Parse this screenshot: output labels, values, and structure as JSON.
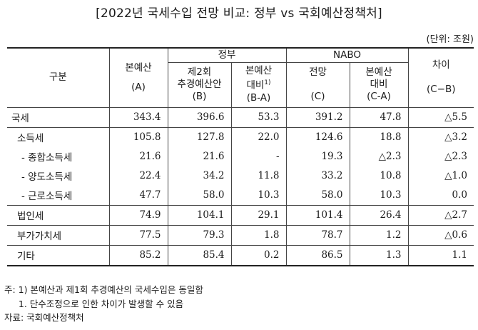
{
  "title": "[2022년 국세수입 전망 비교: 정부 vs 국회예산정책처]",
  "unit": "(단위: 조원)",
  "header": {
    "category": "구분",
    "budget_line1": "본예산",
    "budget_line2": "(A)",
    "gov_group": "정부",
    "gov_sup_line1": "제2회",
    "gov_sup_line2": "추경예산안",
    "gov_sup_line3": "(B)",
    "gov_diff_line1": "본예산",
    "gov_diff_line2": "대비",
    "gov_diff_note": "1)",
    "gov_diff_line3": "(B-A)",
    "nabo_group": "NABO",
    "nabo_fc_line1": "전망",
    "nabo_fc_line3": "(C)",
    "nabo_diff_line1": "본예산",
    "nabo_diff_line2": "대비",
    "nabo_diff_line3": "(C-A)",
    "gap_line1": "차이",
    "gap_line3": "(C−B)"
  },
  "rows": [
    {
      "label": "국세",
      "a": "343.4",
      "b": "396.6",
      "ba": "53.3",
      "c": "391.2",
      "ca": "47.8",
      "cb": "△5.5"
    },
    {
      "label": "소득세",
      "a": "105.8",
      "b": "127.8",
      "ba": "22.0",
      "c": "124.6",
      "ca": "18.8",
      "cb": "△3.2"
    },
    {
      "label": "- 종합소득세",
      "a": "21.6",
      "b": "21.6",
      "ba": "-",
      "c": "19.3",
      "ca": "△2.3",
      "cb": "△2.3"
    },
    {
      "label": "- 양도소득세",
      "a": "22.4",
      "b": "34.2",
      "ba": "11.8",
      "c": "33.2",
      "ca": "10.8",
      "cb": "△1.0"
    },
    {
      "label": "- 근로소득세",
      "a": "47.7",
      "b": "58.0",
      "ba": "10.3",
      "c": "58.0",
      "ca": "10.3",
      "cb": "0.0"
    },
    {
      "label": "법인세",
      "a": "74.9",
      "b": "104.1",
      "ba": "29.1",
      "c": "101.4",
      "ca": "26.4",
      "cb": "△2.7"
    },
    {
      "label": "부가가치세",
      "a": "77.5",
      "b": "79.3",
      "ba": "1.8",
      "c": "78.7",
      "ca": "1.2",
      "cb": "△0.6"
    },
    {
      "label": "기타",
      "a": "85.2",
      "b": "85.4",
      "ba": "0.2",
      "c": "86.5",
      "ca": "1.3",
      "cb": "1.1"
    }
  ],
  "notes": {
    "note1": "주: 1) 본예산과 제1회 추경예산의 국세수입은 동일함",
    "note2": "     1. 단수조정으로 인한 차이가 발생할 수 있음",
    "source": "자료: 국회예산정책처"
  }
}
